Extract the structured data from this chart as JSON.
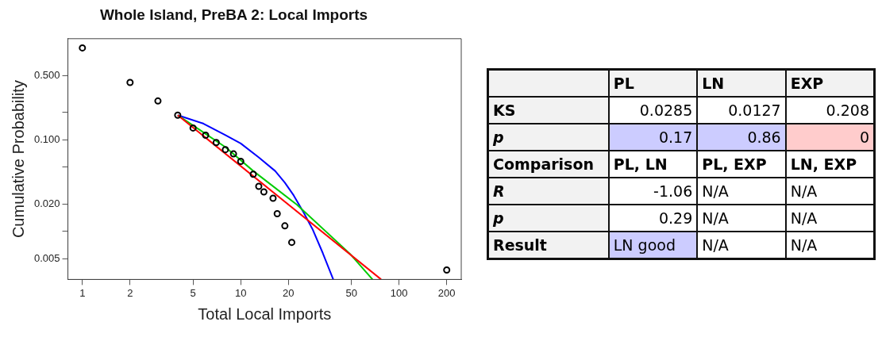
{
  "chart_data": [
    {
      "type": "scatter",
      "title": "Whole Island, PreBA 2: Local Imports",
      "xlabel": "Total Local Imports",
      "ylabel": "Cumulative Probability",
      "log": "xy",
      "grid": false,
      "legend": false,
      "xlim": [
        0.81,
        247
      ],
      "ylim": [
        0.003,
        1.26
      ],
      "xticks": [
        1,
        2,
        5,
        10,
        20,
        50,
        100,
        200
      ],
      "yticks": [
        {
          "value": 0.005,
          "label": "0.005"
        },
        {
          "value": 0.01,
          "label": null
        },
        {
          "value": 0.02,
          "label": "0.020"
        },
        {
          "value": 0.05,
          "label": null
        },
        {
          "value": 0.1,
          "label": "0.100"
        },
        {
          "value": 0.2,
          "label": null
        },
        {
          "value": 0.5,
          "label": "0.500"
        }
      ],
      "series": [
        {
          "type": "scatter",
          "color": "#000000",
          "marker": "circle",
          "x": [
            1,
            2,
            3,
            4,
            5,
            6,
            7,
            8,
            9,
            10,
            12,
            13,
            14,
            16,
            17,
            19,
            21,
            200
          ],
          "values": [
            1.0,
            0.42,
            0.264,
            0.185,
            0.134,
            0.112,
            0.093,
            0.078,
            0.07,
            0.058,
            0.042,
            0.031,
            0.027,
            0.023,
            0.0156,
            0.0115,
            0.0076,
            0.0038
          ]
        },
        {
          "type": "line",
          "color": "#ff0000",
          "marker": "none",
          "x": [
            4,
            77
          ],
          "values": [
            0.185,
            0.003
          ]
        },
        {
          "type": "line",
          "color": "#00cc00",
          "marker": "none",
          "x": [
            4,
            8,
            12,
            22.6,
            49,
            68
          ],
          "values": [
            0.185,
            0.083,
            0.0456,
            0.0196,
            0.0057,
            0.003
          ]
        },
        {
          "type": "line",
          "color": "#0000ff",
          "marker": "none",
          "x": [
            4,
            5.8,
            8,
            10,
            13,
            16.5,
            19,
            21.6,
            25,
            28.4,
            33,
            38.4
          ],
          "values": [
            0.185,
            0.15,
            0.112,
            0.091,
            0.064,
            0.0456,
            0.034,
            0.0247,
            0.016,
            0.0106,
            0.0058,
            0.003
          ]
        }
      ]
    },
    {
      "type": "other",
      "categories": [
        "PL",
        "LN",
        "EXP"
      ],
      "y_categories": [
        "KS",
        "p",
        "Comparison",
        "R",
        "p",
        "Result"
      ],
      "cell_labels": [
        [
          "0.0285",
          "0.0127",
          "0.208"
        ],
        [
          "0.17",
          "0.86",
          "0"
        ],
        [
          "PL, LN",
          "PL, EXP",
          "LN, EXP"
        ],
        [
          "-1.06",
          "N/A",
          "N/A"
        ],
        [
          "0.29",
          "N/A",
          "N/A"
        ],
        [
          "LN good",
          "N/A",
          "N/A"
        ]
      ],
      "colors": [
        [
          null,
          null,
          null
        ],
        [
          "#ccccff",
          "#ccccff",
          "#ffcccc"
        ],
        [
          null,
          null,
          null
        ],
        [
          null,
          null,
          null
        ],
        [
          null,
          null,
          null
        ],
        [
          "#ccccff",
          null,
          null
        ]
      ]
    }
  ]
}
